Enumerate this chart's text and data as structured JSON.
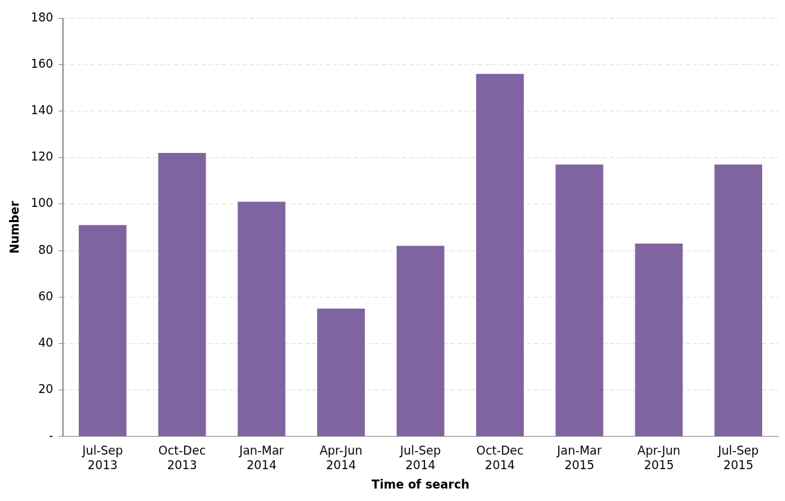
{
  "chart_data": {
    "type": "bar",
    "xlabel": "Time of search",
    "ylabel": "Number",
    "categories": [
      "Jul-Sep 2013",
      "Oct-Dec 2013",
      "Jan-Mar 2014",
      "Apr-Jun 2014",
      "Jul-Sep 2014",
      "Oct-Dec 2014",
      "Jan-Mar 2015",
      "Apr-Jun 2015",
      "Jul-Sep 2015"
    ],
    "values": [
      91,
      122,
      101,
      55,
      82,
      156,
      117,
      83,
      117
    ],
    "color": "#8064a2",
    "ylim": [
      0,
      180
    ],
    "yticks": [
      {
        "value": 0,
        "label": "-"
      },
      20,
      40,
      60,
      80,
      100,
      120,
      140,
      160,
      180
    ],
    "grid": "y",
    "legend": false
  }
}
